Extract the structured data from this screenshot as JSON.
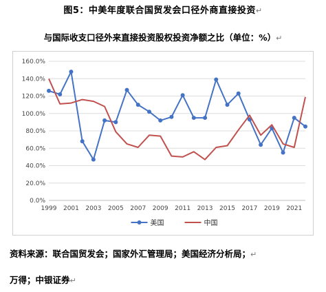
{
  "figure": {
    "title": "图5：中美年度联合国贸发会口径外商直接投资",
    "subtitle": "与国际收支口径外来直接投资股权投资净额之比（单位：%）",
    "source_line1": "资料来源：联合国贸发会；国家外汇管理局；美国经济分析局；",
    "source_line2": "万得；中银证券",
    "paragraph_mark": "↵"
  },
  "chart_data": {
    "type": "line",
    "x": [
      1999,
      2000,
      2001,
      2002,
      2003,
      2004,
      2005,
      2006,
      2007,
      2008,
      2009,
      2010,
      2011,
      2012,
      2013,
      2014,
      2015,
      2016,
      2017,
      2018,
      2019,
      2020,
      2021,
      2022
    ],
    "x_tick_labels": [
      "1999",
      "2001",
      "2003",
      "2005",
      "2007",
      "2009",
      "2011",
      "2013",
      "2015",
      "2017",
      "2019",
      "2021"
    ],
    "y_tick_labels": [
      "0.0%",
      "20.0%",
      "40.0%",
      "60.0%",
      "80.0%",
      "100.0%",
      "120.0%",
      "140.0%",
      "160.0%"
    ],
    "ylim": [
      0,
      160
    ],
    "grid": true,
    "legend_position": "bottom",
    "series": [
      {
        "name": "美国",
        "color": "#4472c4",
        "marker": "circle",
        "values": [
          126,
          122,
          148,
          68,
          47,
          92,
          90,
          127,
          110,
          102,
          92,
          96,
          121,
          95,
          95,
          139,
          110,
          123,
          93,
          64,
          83,
          55,
          95,
          85
        ]
      },
      {
        "name": "中国",
        "color": "#c0504d",
        "marker": "none",
        "values": [
          140,
          111,
          112,
          116,
          114,
          108,
          79,
          65,
          61,
          75,
          74,
          51,
          50,
          56,
          47,
          61,
          63,
          81,
          98,
          75,
          87,
          65,
          61,
          119
        ]
      }
    ]
  }
}
